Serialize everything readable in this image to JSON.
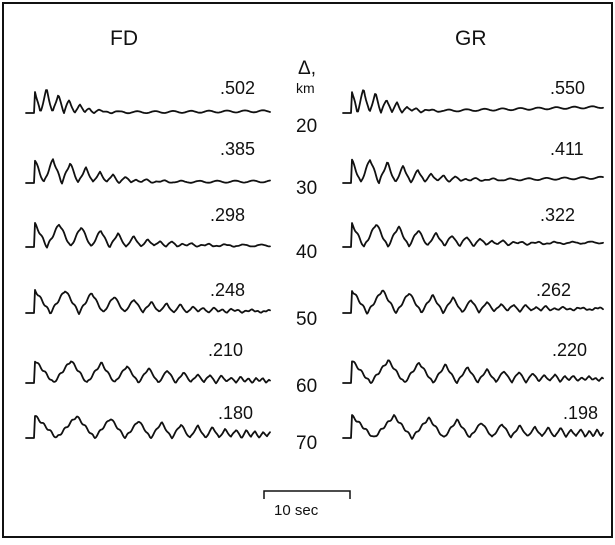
{
  "panels": [
    {
      "label": "FD",
      "amplitudes": [
        ".502",
        ".385",
        ".298",
        ".248",
        ".210",
        ".180"
      ]
    },
    {
      "label": "GR",
      "amplitudes": [
        ".550",
        ".411",
        ".322",
        ".262",
        ".220",
        ".198"
      ]
    }
  ],
  "distance_axis": {
    "symbol": "Δ,",
    "unit": "km",
    "values": [
      "20",
      "30",
      "40",
      "50",
      "60",
      "70"
    ]
  },
  "scale_bar": {
    "label": "10 sec"
  }
}
